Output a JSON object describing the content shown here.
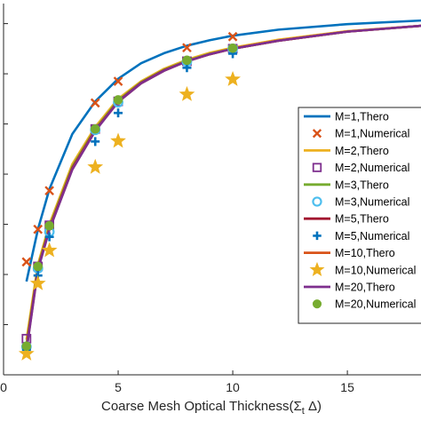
{
  "chart_data": {
    "type": "line",
    "xlabel": "Coarse Mesh Optical Thickness(Σ",
    "xlabel_subscript": "t",
    "xlabel_suffix": " Δ)",
    "ylabel": "",
    "xlim": [
      0,
      18.6
    ],
    "ylim": [
      0,
      0.74
    ],
    "x_ticks": [
      "0",
      "5",
      "10",
      "15"
    ],
    "y_ticks": [
      0.1,
      0.2,
      0.3,
      0.4,
      0.5,
      0.6,
      0.7
    ],
    "grid": false,
    "legend_position": "right",
    "x": [
      1,
      1.5,
      2,
      3,
      4,
      5,
      6,
      7,
      8,
      9,
      10,
      12,
      15,
      18.6
    ],
    "series": [
      {
        "name": "M=1,Thero",
        "kind": "line",
        "color": "#0072BD",
        "values": [
          0.186,
          0.29,
          0.37,
          0.48,
          0.545,
          0.59,
          0.621,
          0.641,
          0.656,
          0.667,
          0.676,
          0.688,
          0.699,
          0.707
        ]
      },
      {
        "name": "M=1,Numerical",
        "kind": "marker",
        "marker": "x",
        "color": "#D95319",
        "x": [
          1,
          1.5,
          2,
          4,
          5,
          8,
          10
        ],
        "values": [
          0.225,
          0.29,
          0.367,
          0.542,
          0.585,
          0.652,
          0.674
        ]
      },
      {
        "name": "M=2,Thero",
        "kind": "line",
        "color": "#EDB120",
        "values": [
          0.07,
          0.22,
          0.3,
          0.42,
          0.494,
          0.55,
          0.585,
          0.61,
          0.628,
          0.642,
          0.652,
          0.668,
          0.685,
          0.697
        ]
      },
      {
        "name": "M=2,Numerical",
        "kind": "marker",
        "marker": "square",
        "color": "#7E2F8E",
        "x": [
          1,
          1.5,
          2,
          4,
          5,
          8,
          10
        ],
        "values": [
          0.072,
          0.216,
          0.298,
          0.49,
          0.545,
          0.625,
          0.65
        ]
      },
      {
        "name": "M=3,Thero",
        "kind": "line",
        "color": "#77AC30",
        "values": [
          0.06,
          0.215,
          0.295,
          0.415,
          0.49,
          0.547,
          0.583,
          0.608,
          0.626,
          0.64,
          0.65,
          0.666,
          0.684,
          0.697
        ]
      },
      {
        "name": "M=3,Numerical",
        "kind": "marker",
        "marker": "circle",
        "color": "#4DBEEE",
        "x": [
          1,
          1.5,
          2,
          4,
          5,
          8,
          10
        ],
        "values": [
          0.056,
          0.212,
          0.285,
          0.488,
          0.543,
          0.624,
          0.65
        ]
      },
      {
        "name": "M=5,Thero",
        "kind": "line",
        "color": "#A2142F",
        "values": [
          0.055,
          0.212,
          0.292,
          0.412,
          0.488,
          0.545,
          0.582,
          0.607,
          0.625,
          0.639,
          0.65,
          0.666,
          0.684,
          0.697
        ]
      },
      {
        "name": "M=5,Numerical",
        "kind": "marker",
        "marker": "plus",
        "color": "#0072BD",
        "x": [
          1,
          1.5,
          2,
          4,
          5,
          8,
          10
        ],
        "values": [
          0.05,
          0.198,
          0.275,
          0.465,
          0.522,
          0.612,
          0.64
        ]
      },
      {
        "name": "M=10,Thero",
        "kind": "line",
        "color": "#D95319",
        "values": [
          0.05,
          0.21,
          0.29,
          0.41,
          0.487,
          0.544,
          0.581,
          0.606,
          0.625,
          0.639,
          0.65,
          0.666,
          0.684,
          0.697
        ]
      },
      {
        "name": "M=10,Numerical",
        "kind": "marker",
        "marker": "star",
        "color": "#EDB120",
        "x": [
          1,
          1.5,
          2,
          4,
          5,
          8,
          10
        ],
        "values": [
          0.042,
          0.182,
          0.248,
          0.414,
          0.466,
          0.559,
          0.589
        ]
      },
      {
        "name": "M=20,Thero",
        "kind": "line",
        "color": "#7E2F8E",
        "values": [
          0.048,
          0.209,
          0.289,
          0.409,
          0.486,
          0.544,
          0.581,
          0.606,
          0.625,
          0.639,
          0.65,
          0.666,
          0.684,
          0.697
        ]
      },
      {
        "name": "M=20,Numerical",
        "kind": "marker",
        "marker": "dot",
        "color": "#77AC30",
        "x": [
          1,
          1.5,
          2,
          4,
          5,
          8,
          10
        ],
        "values": [
          0.057,
          0.216,
          0.297,
          0.49,
          0.548,
          0.627,
          0.651
        ]
      }
    ]
  }
}
